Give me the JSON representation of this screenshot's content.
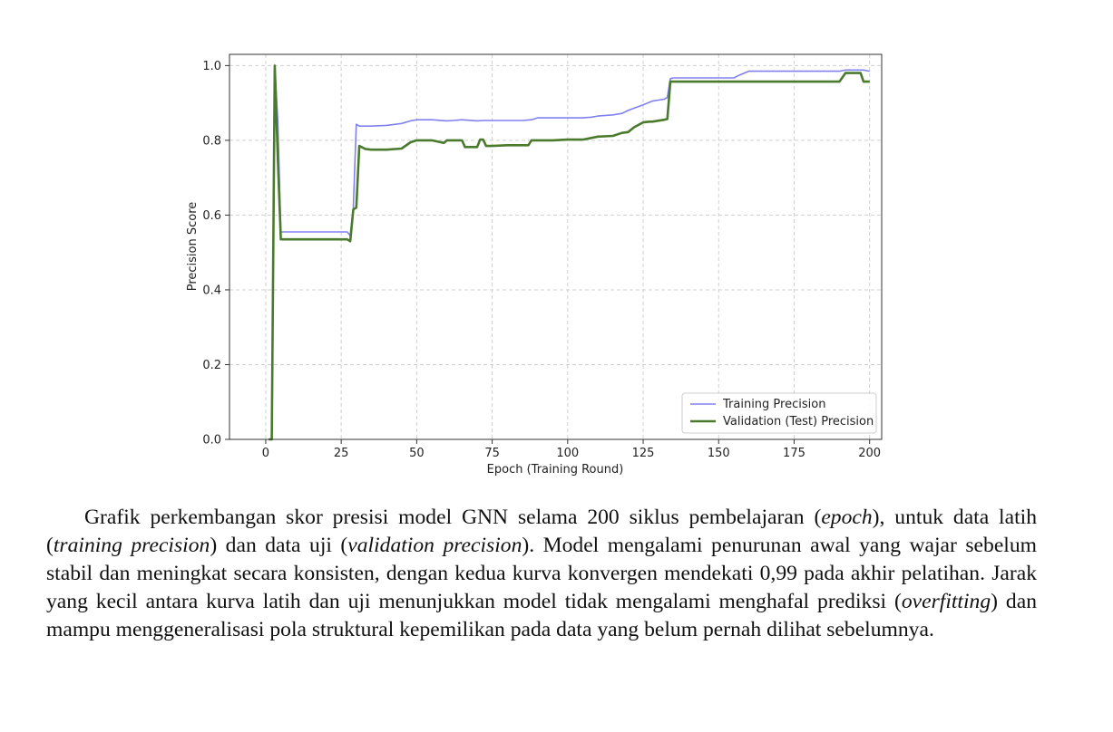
{
  "chart_data": {
    "type": "line",
    "xlabel": "Epoch (Training Round)",
    "ylabel": "Precision Score",
    "xlim": [
      -12,
      204
    ],
    "ylim": [
      0.0,
      1.03
    ],
    "xticks": [
      0,
      25,
      50,
      75,
      100,
      125,
      150,
      175,
      200
    ],
    "yticks": [
      0.0,
      0.2,
      0.4,
      0.6,
      0.8,
      1.0
    ],
    "grid": true,
    "legend_position": "lower-right",
    "series": [
      {
        "name": "Training Precision",
        "color": "#8080f0",
        "x": [
          1,
          2,
          3,
          4,
          5,
          27,
          28,
          29,
          30,
          31,
          35,
          40,
          45,
          48,
          50,
          55,
          60,
          62,
          65,
          70,
          72,
          75,
          85,
          88,
          90,
          95,
          100,
          105,
          108,
          110,
          115,
          118,
          120,
          125,
          128,
          132,
          133,
          134,
          135,
          150,
          155,
          157,
          160,
          175,
          190,
          192,
          195,
          198,
          200
        ],
        "y": [
          0.0,
          0.0,
          1.0,
          0.85,
          0.555,
          0.555,
          0.545,
          0.62,
          0.843,
          0.838,
          0.838,
          0.84,
          0.845,
          0.852,
          0.855,
          0.855,
          0.852,
          0.853,
          0.855,
          0.852,
          0.853,
          0.853,
          0.853,
          0.855,
          0.86,
          0.86,
          0.86,
          0.86,
          0.862,
          0.865,
          0.868,
          0.872,
          0.88,
          0.895,
          0.905,
          0.91,
          0.915,
          0.965,
          0.967,
          0.967,
          0.967,
          0.975,
          0.985,
          0.985,
          0.985,
          0.988,
          0.988,
          0.988,
          0.985
        ]
      },
      {
        "name": "Validation (Test) Precision",
        "color": "#4a7a2e",
        "x": [
          1,
          2,
          3,
          4,
          5,
          27,
          28,
          29,
          30,
          31,
          33,
          35,
          40,
          45,
          48,
          50,
          55,
          58,
          59,
          60,
          65,
          66,
          70,
          71,
          72,
          73,
          75,
          80,
          85,
          87,
          88,
          90,
          95,
          100,
          105,
          110,
          115,
          118,
          120,
          122,
          125,
          127,
          128,
          132,
          133,
          134,
          135,
          150,
          175,
          190,
          192,
          195,
          197,
          198,
          200
        ],
        "y": [
          0.0,
          0.0,
          1.0,
          0.75,
          0.535,
          0.535,
          0.53,
          0.615,
          0.62,
          0.785,
          0.777,
          0.775,
          0.775,
          0.778,
          0.795,
          0.8,
          0.8,
          0.795,
          0.793,
          0.8,
          0.8,
          0.782,
          0.782,
          0.802,
          0.802,
          0.785,
          0.785,
          0.787,
          0.787,
          0.787,
          0.8,
          0.8,
          0.8,
          0.802,
          0.802,
          0.81,
          0.812,
          0.82,
          0.822,
          0.835,
          0.848,
          0.85,
          0.85,
          0.855,
          0.857,
          0.957,
          0.957,
          0.957,
          0.957,
          0.957,
          0.98,
          0.98,
          0.98,
          0.957,
          0.957
        ]
      }
    ]
  },
  "caption": {
    "part1": "Grafik perkembangan skor presisi model GNN selama 200 siklus pembelajaran (",
    "em1": "epoch",
    "part2": "), untuk data latih (",
    "em2": "training precision",
    "part3": ") dan data uji (",
    "em3": "validation precision",
    "part4": "). Model mengalami penurunan awal yang wajar sebelum stabil dan meningkat secara konsisten, dengan kedua kurva konvergen mendekati 0,99 pada akhir pelatihan. Jarak yang kecil antara kurva latih dan uji menunjukkan model tidak mengalami menghafal prediksi (",
    "em4": "overfitting",
    "part5": ") dan mampu menggeneralisasi pola struktural kepemilikan pada data yang belum pernah dilihat sebelumnya."
  }
}
